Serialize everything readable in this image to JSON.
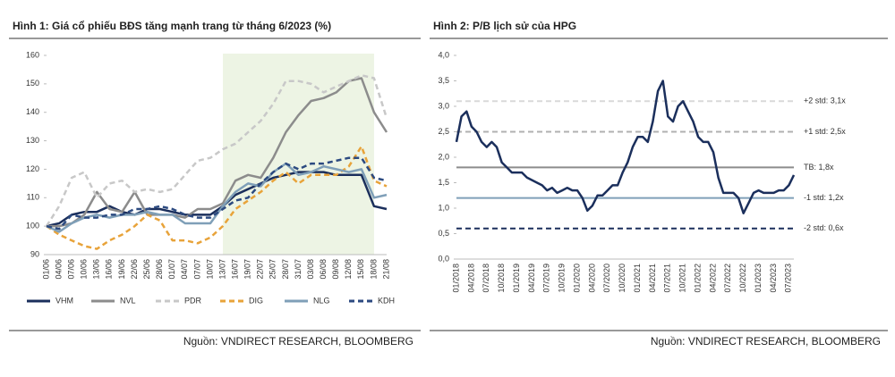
{
  "chart_data": [
    {
      "type": "line",
      "title": "Hình 1: Giá cổ phiếu BĐS tăng mạnh trang từ tháng 6/2023 (%)",
      "source": "Nguồn: VNDIRECT RESEARCH, BLOOMBERG",
      "categories": [
        "01/06",
        "04/06",
        "07/06",
        "10/06",
        "13/06",
        "16/06",
        "19/06",
        "22/06",
        "25/06",
        "28/06",
        "01/07",
        "04/07",
        "07/07",
        "10/07",
        "13/07",
        "16/07",
        "19/07",
        "22/07",
        "25/07",
        "28/07",
        "31/07",
        "03/08",
        "06/08",
        "09/08",
        "12/08",
        "15/08",
        "18/08",
        "21/08"
      ],
      "highlight": [
        "13/07",
        "18/08"
      ],
      "ylim": [
        90,
        160
      ],
      "yticks": [
        90,
        100,
        110,
        120,
        130,
        140,
        150,
        160
      ],
      "series": [
        {
          "name": "VHM",
          "color": "#1b2f5c",
          "dash": false,
          "values": [
            100,
            101,
            104,
            105,
            105,
            107,
            105,
            104,
            106,
            106,
            105,
            104,
            104,
            104,
            107,
            111,
            113,
            115,
            117,
            118,
            119,
            119,
            119,
            118,
            118,
            118,
            107,
            106
          ]
        },
        {
          "name": "NVL",
          "color": "#8c8c8c",
          "dash": false,
          "values": [
            100,
            100,
            101,
            104,
            112,
            106,
            105,
            112,
            104,
            104,
            104,
            103,
            106,
            106,
            108,
            116,
            118,
            117,
            124,
            133,
            139,
            144,
            145,
            147,
            151,
            152,
            140,
            133
          ]
        },
        {
          "name": "PDR",
          "color": "#c8c8c8",
          "dash": true,
          "values": [
            100,
            107,
            117,
            119,
            110,
            115,
            116,
            112,
            113,
            112,
            113,
            118,
            123,
            124,
            127,
            129,
            133,
            137,
            143,
            151,
            151,
            150,
            147,
            149,
            151,
            153,
            152,
            138
          ]
        },
        {
          "name": "DIG",
          "color": "#e8a33a",
          "dash": true,
          "values": [
            100,
            97,
            95,
            93,
            92,
            95,
            97,
            100,
            104,
            102,
            95,
            95,
            94,
            96,
            100,
            106,
            109,
            112,
            116,
            119,
            115,
            118,
            118,
            118,
            121,
            128,
            116,
            114
          ]
        },
        {
          "name": "NLG",
          "color": "#7f9fb8",
          "dash": false,
          "values": [
            100,
            98,
            101,
            103,
            104,
            103,
            104,
            104,
            105,
            104,
            104,
            101,
            101,
            101,
            107,
            112,
            115,
            114,
            119,
            122,
            118,
            119,
            121,
            120,
            119,
            120,
            110,
            111
          ]
        },
        {
          "name": "KDH",
          "color": "#2c4a80",
          "dash": true,
          "values": [
            100,
            99,
            104,
            103,
            103,
            104,
            104,
            106,
            106,
            107,
            106,
            104,
            103,
            103,
            106,
            109,
            110,
            115,
            119,
            122,
            120,
            122,
            122,
            123,
            124,
            124,
            117,
            116
          ]
        }
      ]
    },
    {
      "type": "line",
      "title": "Hình 2: P/B lịch sử của HPG",
      "source": "Nguồn: VNDIRECT RESEARCH, BLOOMBERG",
      "categories": [
        "01/2018",
        null,
        null,
        "04/2018",
        null,
        null,
        "07/2018",
        null,
        null,
        "10/2018",
        null,
        null,
        "01/2019",
        null,
        null,
        "04/2019",
        null,
        null,
        "07/2019",
        null,
        null,
        "10/2019",
        null,
        null,
        "01/2020",
        null,
        null,
        "04/2020",
        null,
        null,
        "07/2020",
        null,
        null,
        "10/2020",
        null,
        null,
        "01/2021",
        null,
        null,
        "04/2021",
        null,
        null,
        "07/2021",
        null,
        null,
        "10/2021",
        null,
        null,
        "01/2022",
        null,
        null,
        "04/2022",
        null,
        null,
        "07/2022",
        null,
        null,
        "10/2022",
        null,
        null,
        "01/2023",
        null,
        null,
        "04/2023",
        null,
        null,
        "07/2023",
        null
      ],
      "ylim": [
        0,
        4
      ],
      "yticks": [
        {
          "value": 0,
          "label": "0,0"
        },
        {
          "value": 0.5,
          "label": "0,5"
        },
        {
          "value": 1,
          "label": "1,0"
        },
        {
          "value": 1.5,
          "label": "1,5"
        },
        {
          "value": 2,
          "label": "2,0"
        },
        {
          "value": 2.5,
          "label": "2,5"
        },
        {
          "value": 3,
          "label": "3,0"
        },
        {
          "value": 3.5,
          "label": "3,5"
        },
        {
          "value": 4,
          "label": "4,0"
        }
      ],
      "reference_lines": [
        {
          "value": 3.1,
          "label": "+2 std: 3,1x",
          "color": "#d9d9d9",
          "dash": true
        },
        {
          "value": 2.5,
          "label": "+1 std: 2,5x",
          "color": "#b0b0b0",
          "dash": true
        },
        {
          "value": 1.8,
          "label": "TB: 1,8x",
          "color": "#8c8c8c",
          "dash": false
        },
        {
          "value": 1.2,
          "label": "-1 std: 1,2x",
          "color": "#7f9fb8",
          "dash": false
        },
        {
          "value": 0.6,
          "label": "-2 std: 0,6x",
          "color": "#1b2f5c",
          "dash": true
        }
      ],
      "series": [
        {
          "color": "#1b2f5c",
          "dash": false,
          "values": [
            2.3,
            2.8,
            2.9,
            2.6,
            2.5,
            2.3,
            2.2,
            2.3,
            2.2,
            1.9,
            1.8,
            1.7,
            1.7,
            1.7,
            1.6,
            1.55,
            1.5,
            1.45,
            1.35,
            1.4,
            1.3,
            1.35,
            1.4,
            1.35,
            1.35,
            1.2,
            0.95,
            1.05,
            1.25,
            1.25,
            1.35,
            1.45,
            1.45,
            1.7,
            1.9,
            2.2,
            2.4,
            2.4,
            2.3,
            2.7,
            3.3,
            3.5,
            2.8,
            2.7,
            3.0,
            3.1,
            2.9,
            2.7,
            2.4,
            2.3,
            2.3,
            2.1,
            1.6,
            1.3,
            1.3,
            1.3,
            1.2,
            0.9,
            1.1,
            1.3,
            1.35,
            1.3,
            1.3,
            1.3,
            1.35,
            1.35,
            1.45,
            1.65
          ]
        }
      ]
    }
  ]
}
